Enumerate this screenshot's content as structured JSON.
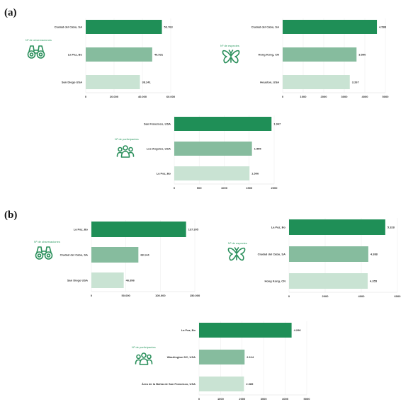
{
  "panels": [
    {
      "label": "(a)"
    },
    {
      "label": "(b)"
    }
  ],
  "colors": {
    "dark": "#1f8f57",
    "mid": "#86bc9e",
    "light": "#c9e3d3",
    "title": "#2e9b63",
    "icon": "#2a8f5b"
  },
  "chart_data": [
    {
      "type": "bar",
      "orientation": "horizontal",
      "title": "Nº de observaciones",
      "icon": "binoculars-icon",
      "categories": [
        "Ciudad del Cabo, SA",
        "La Paz, Bo",
        "San Diego USA"
      ],
      "values": [
        53763,
        46931,
        38241
      ],
      "value_labels": [
        "53.763",
        "46.931",
        "38.241"
      ],
      "xlim": [
        0,
        60000
      ],
      "ticks": [
        0,
        20000,
        40000,
        60000
      ],
      "tick_labels": [
        "0",
        "20.000",
        "40.000",
        "60.000"
      ]
    },
    {
      "type": "bar",
      "orientation": "horizontal",
      "title": "Nº de especies",
      "icon": "butterfly-icon",
      "categories": [
        "Ciudad del Cabo, SA",
        "Hong Kong, CN",
        "Houston, USA"
      ],
      "values": [
        4588,
        3596,
        3267
      ],
      "value_labels": [
        "4.588",
        "3.596",
        "3.267"
      ],
      "xlim": [
        0,
        5000
      ],
      "ticks": [
        0,
        1000,
        2000,
        3000,
        4000,
        5000
      ],
      "tick_labels": [
        "0",
        "1000",
        "2000",
        "3000",
        "4000",
        "5000"
      ]
    },
    {
      "type": "bar",
      "orientation": "horizontal",
      "title": "Nº de participantes",
      "icon": "people-icon",
      "categories": [
        "San Francisco, USA",
        "Los Angeles, USA",
        "La Paz, Bo"
      ],
      "values": [
        1947,
        1555,
        1506
      ],
      "value_labels": [
        "1.947",
        "1.555",
        "1.506"
      ],
      "xlim": [
        0,
        2000
      ],
      "ticks": [
        0,
        500,
        1000,
        1500,
        2000
      ],
      "tick_labels": [
        "0",
        "500",
        "1000",
        "1500",
        "2000"
      ]
    },
    {
      "type": "bar",
      "orientation": "horizontal",
      "title": "Nº de observaciones",
      "icon": "binoculars-icon",
      "categories": [
        "La Paz, Bo",
        "Ciudad del Cabo, SA",
        "San Diego USA"
      ],
      "values": [
        137305,
        68144,
        46896
      ],
      "value_labels": [
        "137.305",
        "68.144",
        "46.896"
      ],
      "xlim": [
        0,
        150000
      ],
      "ticks": [
        0,
        50000,
        100000,
        150000
      ],
      "tick_labels": [
        "0",
        "50.000",
        "100.000",
        "150.000"
      ]
    },
    {
      "type": "bar",
      "orientation": "horizontal",
      "title": "Nº de especies",
      "icon": "butterfly-icon",
      "categories": [
        "La Paz, Bo",
        "Ciudad del Cabo, SA",
        "Hong Kong, CN"
      ],
      "values": [
        5328,
        4388,
        4355
      ],
      "value_labels": [
        "5.328",
        "4.388",
        "4.355"
      ],
      "xlim": [
        0,
        6000
      ],
      "ticks": [
        0,
        2000,
        4000,
        6000
      ],
      "tick_labels": [
        "0",
        "2000",
        "4000",
        "6000"
      ]
    },
    {
      "type": "bar",
      "orientation": "horizontal",
      "title": "Nº de participantes",
      "icon": "people-icon",
      "categories": [
        "La Paz, Bo",
        "Washington DC, USA",
        "Área de la Bahía de San Francisco, USA"
      ],
      "values": [
        4296,
        2114,
        2085
      ],
      "value_labels": [
        "4.296",
        "2.114",
        "2.085"
      ],
      "xlim": [
        0,
        5000
      ],
      "ticks": [
        0,
        1000,
        2000,
        3000,
        4000,
        5000
      ],
      "tick_labels": [
        "0",
        "1000",
        "2000",
        "3000",
        "4000",
        "5000"
      ]
    }
  ]
}
